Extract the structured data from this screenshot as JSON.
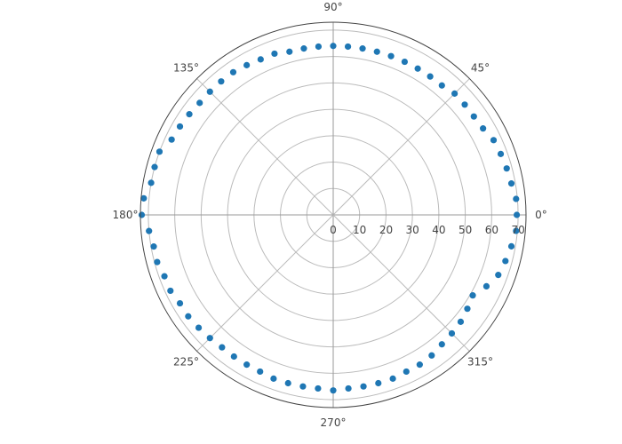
{
  "chart_data": {
    "type": "scatter",
    "projection": "polar",
    "angular_unit": "degrees",
    "angular_ticks": [
      0,
      45,
      90,
      135,
      180,
      225,
      270,
      315
    ],
    "angular_tick_labels": [
      "0°",
      "45°",
      "90°",
      "135°",
      "180°",
      "225°",
      "270°",
      "315°"
    ],
    "radial_range": [
      0,
      73
    ],
    "radial_ticks": [
      0,
      10,
      20,
      30,
      40,
      50,
      60,
      70
    ],
    "radial_tick_labels": [
      "0",
      "10",
      "20",
      "30",
      "40",
      "50",
      "60",
      "70"
    ],
    "grid": true,
    "legend": false,
    "colors": {
      "marker": "#1f77b4",
      "grid": "#bbbbbb",
      "frame": "#444444",
      "text": "#444444"
    },
    "series": [
      {
        "theta": [
          0,
          5,
          10,
          15,
          20,
          25,
          30,
          35,
          40,
          45,
          50,
          55,
          60,
          65,
          70,
          75,
          80,
          85,
          90,
          95,
          100,
          105,
          110,
          115,
          120,
          125,
          130,
          135,
          140,
          145,
          150,
          155,
          160,
          165,
          170,
          175,
          180,
          185,
          190,
          195,
          200,
          205,
          210,
          215,
          220,
          225,
          230,
          235,
          240,
          245,
          250,
          255,
          260,
          265,
          270,
          275,
          280,
          285,
          290,
          295,
          300,
          305,
          310,
          315,
          320,
          325,
          330,
          335,
          340,
          345,
          350,
          355
        ],
        "r": [
          69.5,
          69.5,
          68.5,
          68,
          67.5,
          67,
          65.5,
          65,
          65,
          65,
          64,
          64,
          64,
          64,
          64,
          64,
          64,
          64,
          64,
          64,
          64,
          64,
          65,
          65,
          65.5,
          66,
          66,
          66,
          66,
          66.5,
          67,
          67.5,
          70,
          70,
          70,
          72,
          72.5,
          70,
          69,
          69,
          68,
          68,
          67,
          67,
          66.5,
          66,
          65.5,
          65.5,
          65.5,
          65.5,
          66,
          66,
          66,
          66,
          66.5,
          66,
          66,
          66,
          66,
          65.5,
          65.5,
          65,
          64,
          63.5,
          63,
          62,
          61,
          64,
          66.5,
          67.5,
          68.5,
          69.5
        ]
      }
    ]
  }
}
